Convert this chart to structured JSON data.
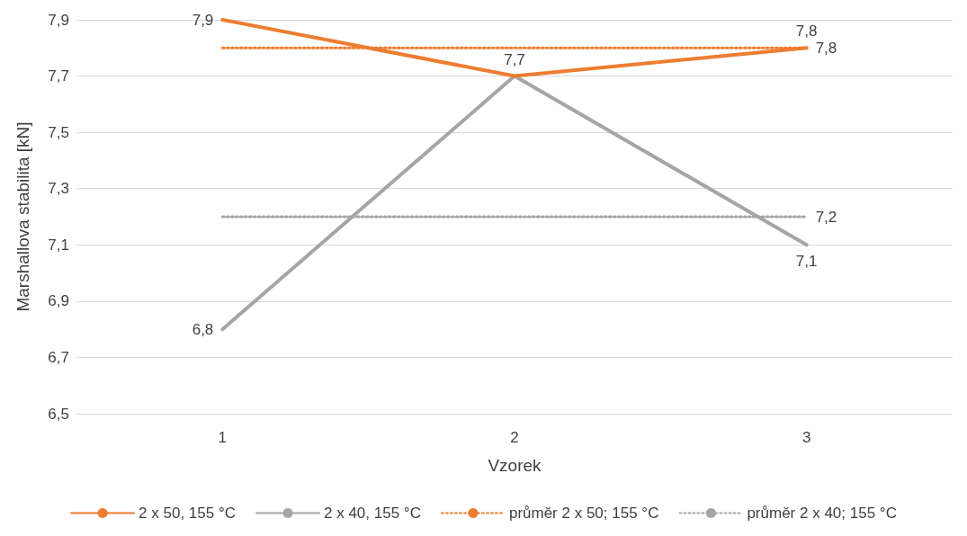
{
  "chart_data": {
    "type": "line",
    "xlabel": "Vzorek",
    "ylabel": "Marshallova stabilita [kN]",
    "categories": [
      "1",
      "2",
      "3"
    ],
    "series": [
      {
        "name": "2 x 50, 155 °C",
        "color": "#ed7d31",
        "values": [
          7.9,
          7.7,
          7.8
        ],
        "line_style": "solid",
        "value_labels": [
          "7,9",
          "7,7",
          "7,8"
        ]
      },
      {
        "name": "2 x 40, 155 °C",
        "color": "#a5a5a5",
        "values": [
          6.8,
          7.7,
          7.1
        ],
        "line_style": "solid",
        "value_labels": [
          "6,8",
          null,
          "7,1"
        ]
      },
      {
        "name": "průměr 2 x 50; 155 °C",
        "color": "#ed7d31",
        "values": [
          7.8,
          7.8,
          7.8
        ],
        "line_style": "dotted",
        "value_labels": [
          null,
          null,
          "7,8"
        ]
      },
      {
        "name": "průměr 2 x 40; 155 °C",
        "color": "#a5a5a5",
        "values": [
          7.2,
          7.2,
          7.2
        ],
        "line_style": "dotted",
        "value_labels": [
          null,
          null,
          "7,2"
        ]
      }
    ],
    "ylim": [
      6.5,
      7.9
    ],
    "yticks": [
      {
        "value": 6.5,
        "label": "6,5"
      },
      {
        "value": 6.7,
        "label": "6,7"
      },
      {
        "value": 6.9,
        "label": "6,9"
      },
      {
        "value": 7.1,
        "label": "7,1"
      },
      {
        "value": 7.3,
        "label": "7,3"
      },
      {
        "value": 7.5,
        "label": "7,5"
      },
      {
        "value": 7.7,
        "label": "7,7"
      },
      {
        "value": 7.9,
        "label": "7,9"
      }
    ],
    "grid": "y",
    "legend": "bottom",
    "marker": "none"
  }
}
